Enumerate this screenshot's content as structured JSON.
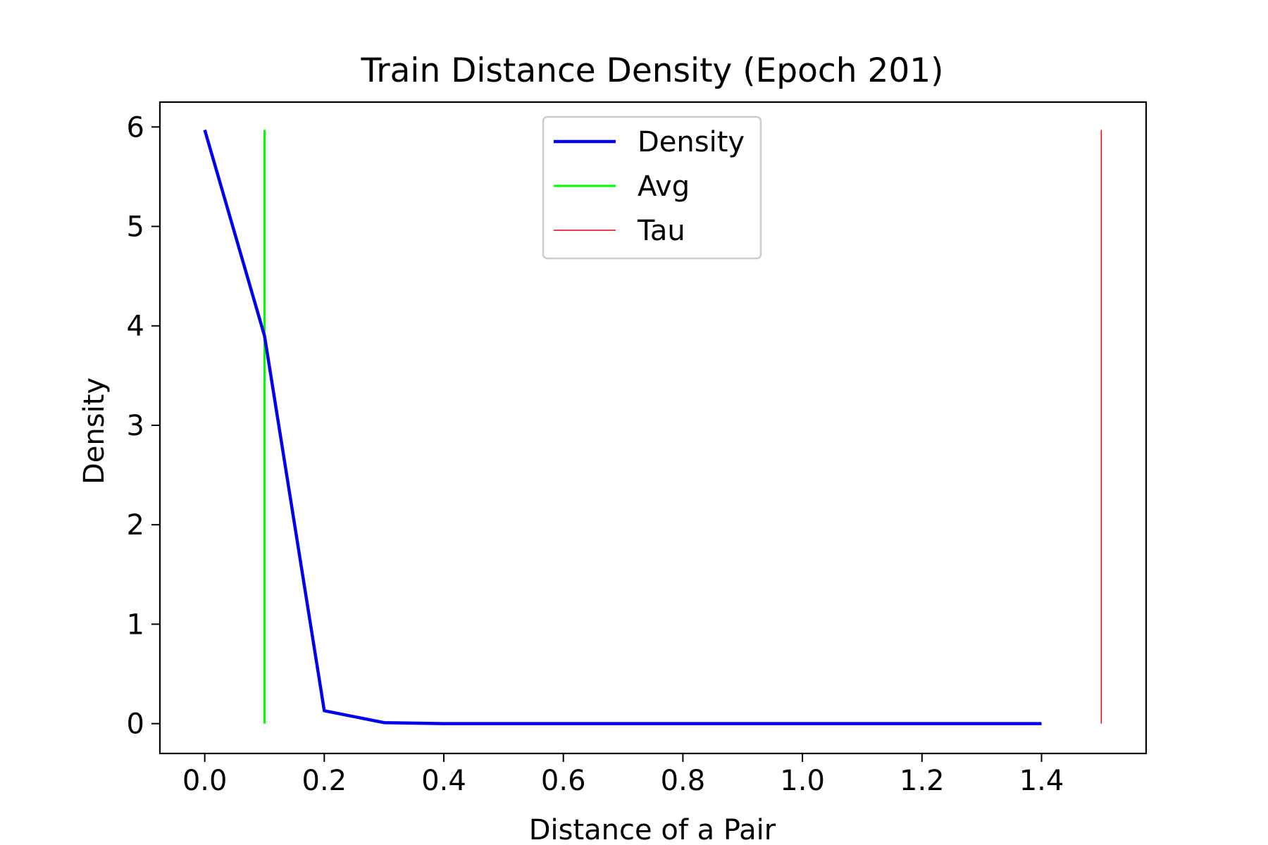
{
  "chart_data": {
    "type": "line",
    "title": "Train Distance Density (Epoch 201)",
    "xlabel": "Distance of a Pair",
    "ylabel": "Density",
    "xlim": [
      -0.075,
      1.575
    ],
    "ylim": [
      -0.3,
      6.25
    ],
    "x_ticks": [
      0.0,
      0.2,
      0.4,
      0.6,
      0.8,
      1.0,
      1.2,
      1.4
    ],
    "x_tick_labels": [
      "0.0",
      "0.2",
      "0.4",
      "0.6",
      "0.8",
      "1.0",
      "1.2",
      "1.4"
    ],
    "y_ticks": [
      0,
      1,
      2,
      3,
      4,
      5,
      6
    ],
    "y_tick_labels": [
      "0",
      "1",
      "2",
      "3",
      "4",
      "5",
      "6"
    ],
    "grid": false,
    "legend_position": "top-center",
    "series": [
      {
        "name": "Density",
        "color": "#0000ee",
        "x": [
          0.0,
          0.1,
          0.2,
          0.3,
          0.4,
          0.5,
          0.6,
          0.7,
          0.8,
          0.9,
          1.0,
          1.1,
          1.2,
          1.3,
          1.4
        ],
        "y": [
          5.97,
          3.9,
          0.13,
          0.01,
          0.0,
          0.0,
          0.0,
          0.0,
          0.0,
          0.0,
          0.0,
          0.0,
          0.0,
          0.0,
          0.0
        ]
      }
    ],
    "vlines": [
      {
        "name": "Avg",
        "color": "#00ff00",
        "x": 0.1,
        "ymin": 0.0,
        "ymax": 5.97
      },
      {
        "name": "Tau",
        "color": "#dd0000",
        "x": 1.5,
        "ymin": 0.0,
        "ymax": 5.97
      }
    ]
  }
}
